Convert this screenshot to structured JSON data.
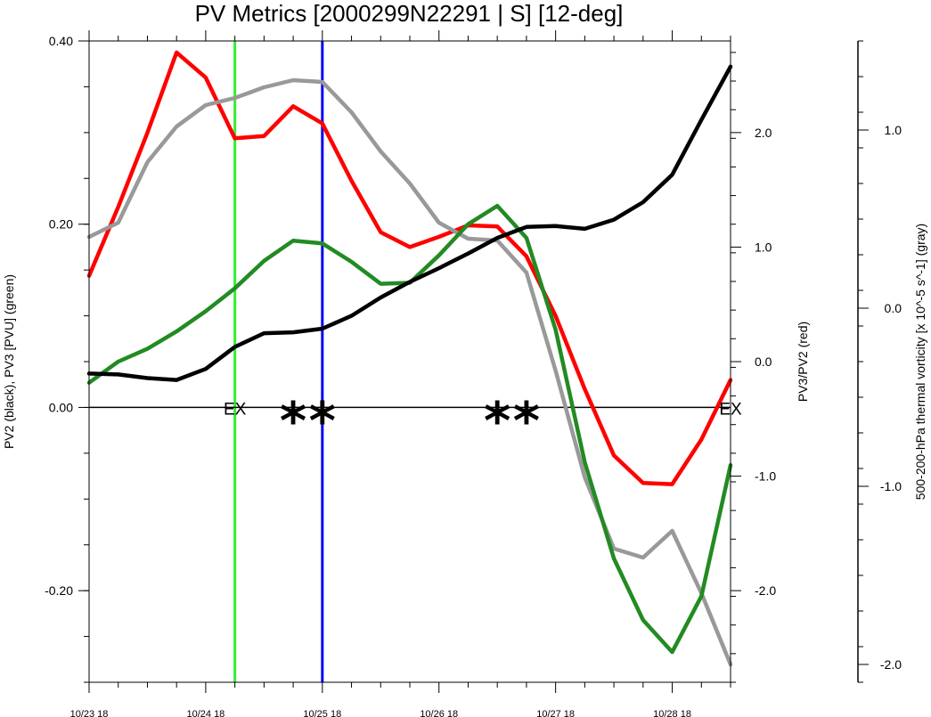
{
  "chart_data": {
    "type": "line",
    "title": "PV Metrics [2000299N22291 | S] [12-deg]",
    "x_labels": [
      "10/23 18",
      "10/24 18",
      "10/25 18",
      "10/26 18",
      "10/27 18",
      "10/28 18"
    ],
    "x_label_positions_days": [
      0,
      1,
      2,
      3,
      4,
      5
    ],
    "xlim_days": [
      0,
      5.5
    ],
    "time_step_days": 0.25,
    "left_axis": {
      "label": "PV2 (black), PV3 [PVU] (green)",
      "ylim": [
        -0.3,
        0.4
      ],
      "tick_labels": [
        "0.40",
        "0.20",
        "0.00",
        "-0.20"
      ],
      "tick_values": [
        0.4,
        0.2,
        0.0,
        -0.2
      ],
      "minor_step": 0.05
    },
    "right_axis": {
      "label": "PV3/PV2 (red)",
      "ylim": [
        -2.8,
        2.8
      ],
      "tick_labels": [
        "2.0",
        "1.0",
        "0.0",
        "-1.0",
        "-2.0"
      ],
      "tick_values": [
        2.0,
        1.0,
        0.0,
        -1.0,
        -2.0
      ],
      "minor_step": 0.25
    },
    "far_right_axis": {
      "label": "500-200-hPa thermal vorticity [x 10^-5 s^-1] (gray)",
      "ylim": [
        -2.1,
        1.5
      ],
      "tick_labels": [
        "1.0",
        "0.0",
        "-1.0",
        "-2.0"
      ],
      "tick_values": [
        1.0,
        0.0,
        -1.0,
        -2.0
      ],
      "minor_step": 0.2
    },
    "series": [
      {
        "axis": "right_axis",
        "color": "#ff0000",
        "values": [
          0.75,
          1.35,
          2.0,
          2.7,
          2.48,
          1.95,
          1.97,
          2.23,
          2.08,
          1.58,
          1.13,
          1.0,
          1.09,
          1.19,
          1.18,
          0.92,
          0.4,
          -0.24,
          -0.82,
          -1.06,
          -1.07,
          -0.68,
          -0.16
        ]
      },
      {
        "axis": "far_right_axis",
        "color": "#999999",
        "values": [
          0.4,
          0.48,
          0.82,
          1.02,
          1.14,
          1.18,
          1.24,
          1.28,
          1.27,
          1.1,
          0.88,
          0.7,
          0.48,
          0.39,
          0.38,
          0.2,
          -0.35,
          -0.95,
          -1.35,
          -1.4,
          -1.25,
          -1.6,
          -2.0
        ]
      },
      {
        "axis": "left_axis",
        "color": "#228b22",
        "values": [
          0.027,
          0.05,
          0.064,
          0.083,
          0.105,
          0.13,
          0.16,
          0.182,
          0.179,
          0.159,
          0.135,
          0.136,
          0.166,
          0.2,
          0.22,
          0.185,
          0.085,
          -0.06,
          -0.165,
          -0.232,
          -0.267,
          -0.206,
          -0.063
        ]
      },
      {
        "axis": "left_axis",
        "color": "#000000",
        "values": [
          0.037,
          0.036,
          0.032,
          0.03,
          0.042,
          0.066,
          0.081,
          0.082,
          0.086,
          0.1,
          0.12,
          0.137,
          0.152,
          0.168,
          0.185,
          0.197,
          0.198,
          0.195,
          0.205,
          0.224,
          0.254,
          0.314,
          0.372
        ]
      }
    ],
    "vertical_lines": [
      {
        "x_days": 1.25,
        "color": "#33ee33"
      },
      {
        "x_days": 2.0,
        "color": "#0000ee"
      }
    ],
    "zero_line": 0.0,
    "annotations": [
      {
        "text": "EX",
        "x_days": 1.25
      },
      {
        "text": "EX",
        "x_days": 5.5
      },
      {
        "text": "*",
        "x_days": 1.75
      },
      {
        "text": "*",
        "x_days": 2.0
      },
      {
        "text": "*",
        "x_days": 3.5
      },
      {
        "text": "*",
        "x_days": 3.75
      }
    ]
  }
}
